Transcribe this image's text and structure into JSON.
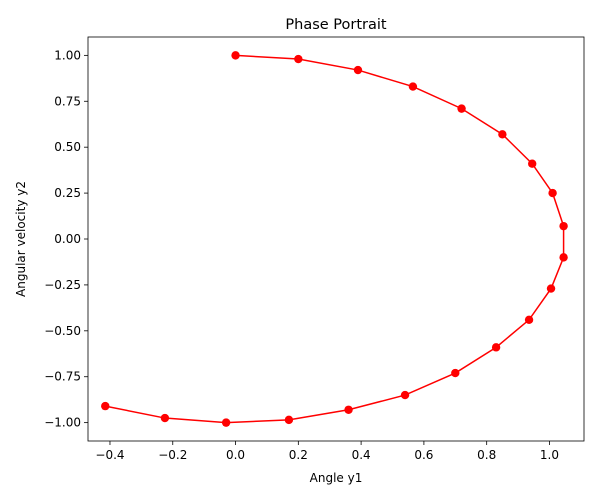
{
  "chart_data": {
    "type": "line",
    "title": "Phase Portrait",
    "xlabel": "Angle y1",
    "ylabel": "Angular velocity y2",
    "xlim": [
      -0.47,
      1.11
    ],
    "ylim": [
      -1.1,
      1.1
    ],
    "xticks": [
      -0.4,
      -0.2,
      0.0,
      0.2,
      0.4,
      0.6,
      0.8,
      1.0
    ],
    "xtick_labels": [
      "−0.4",
      "−0.2",
      "0.0",
      "0.2",
      "0.4",
      "0.6",
      "0.8",
      "1.0"
    ],
    "yticks": [
      1.0,
      0.75,
      0.5,
      0.25,
      0.0,
      -0.25,
      -0.5,
      -0.75,
      -1.0
    ],
    "ytick_labels": [
      "1.00",
      "0.75",
      "0.50",
      "0.25",
      "0.00",
      "−0.25",
      "−0.50",
      "−0.75",
      "−1.00"
    ],
    "grid": false,
    "legend": "none",
    "series": [
      {
        "color": "#ff0000",
        "marker": "circle",
        "x": [
          0.0,
          0.2,
          0.39,
          0.565,
          0.72,
          0.85,
          0.945,
          1.01,
          1.045,
          1.045,
          1.005,
          0.935,
          0.83,
          0.7,
          0.54,
          0.36,
          0.17,
          -0.03,
          -0.225,
          -0.415
        ],
        "y": [
          1.0,
          0.98,
          0.92,
          0.83,
          0.71,
          0.57,
          0.41,
          0.25,
          0.07,
          -0.1,
          -0.27,
          -0.44,
          -0.59,
          -0.73,
          -0.85,
          -0.93,
          -0.985,
          -1.0,
          -0.975,
          -0.91
        ]
      }
    ]
  }
}
